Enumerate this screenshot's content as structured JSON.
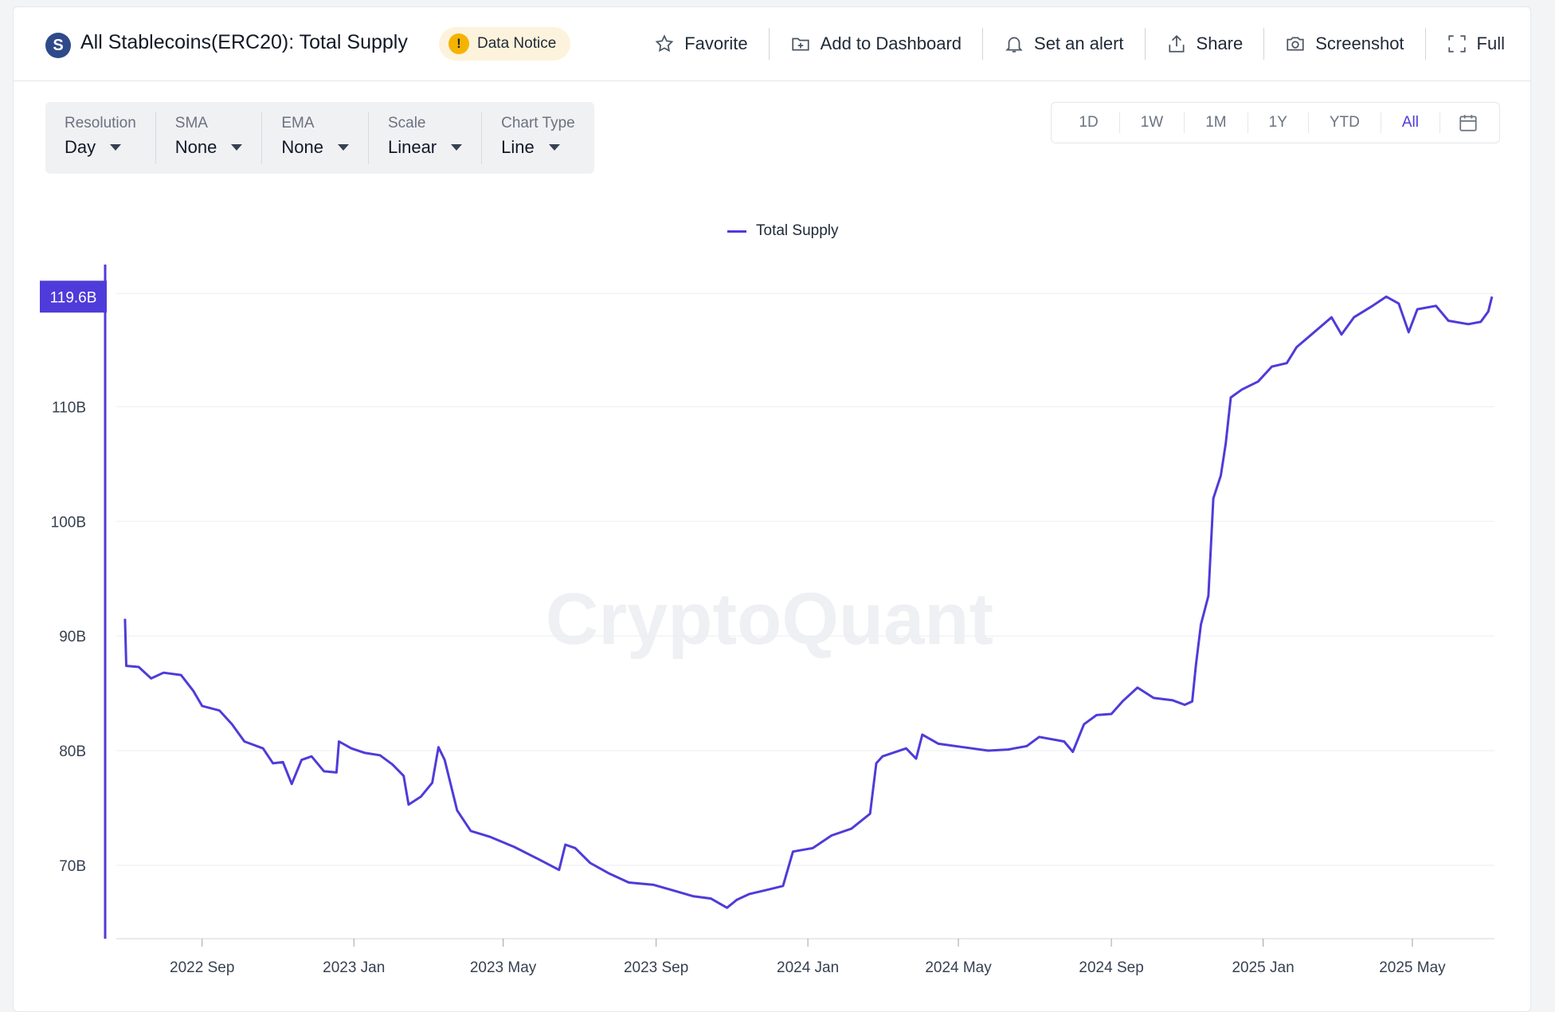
{
  "header": {
    "brand_icon": "S",
    "title": "All Stablecoins(ERC20): Total Supply",
    "notice_icon": "!",
    "notice_label": "Data Notice",
    "actions": [
      {
        "label": "Favorite",
        "icon": "star-icon"
      },
      {
        "label": "Add to Dashboard",
        "icon": "dashboard-add-icon"
      },
      {
        "label": "Set an alert",
        "icon": "bell-icon"
      },
      {
        "label": "Share",
        "icon": "share-icon"
      },
      {
        "label": "Screenshot",
        "icon": "camera-icon"
      },
      {
        "label": "Full",
        "icon": "fullscreen-icon"
      }
    ]
  },
  "selectors": [
    {
      "label": "Resolution",
      "value": "Day"
    },
    {
      "label": "SMA",
      "value": "None"
    },
    {
      "label": "EMA",
      "value": "None"
    },
    {
      "label": "Scale",
      "value": "Linear"
    },
    {
      "label": "Chart Type",
      "value": "Line"
    }
  ],
  "ranges": {
    "items": [
      "1D",
      "1W",
      "1M",
      "1Y",
      "YTD",
      "All"
    ],
    "active": "All",
    "calendar_icon": "calendar-icon"
  },
  "colors": {
    "accent": "#4f3bd9",
    "brand": "#2f4a8a",
    "notice": "#f5b301"
  },
  "chart_data": {
    "type": "line",
    "watermark": "CryptoQuant",
    "legend": "top-center",
    "grid": true,
    "series": [
      {
        "name": "Total Supply",
        "color": "#4f3bd9",
        "points": [
          [
            "2022-07-01",
            91.5
          ],
          [
            "2022-07-02",
            87.4
          ],
          [
            "2022-07-12",
            87.3
          ],
          [
            "2022-07-22",
            86.3
          ],
          [
            "2022-08-01",
            86.8
          ],
          [
            "2022-08-15",
            86.6
          ],
          [
            "2022-08-25",
            85.2
          ],
          [
            "2022-09-01",
            83.9
          ],
          [
            "2022-09-15",
            83.5
          ],
          [
            "2022-09-25",
            82.3
          ],
          [
            "2022-10-05",
            80.8
          ],
          [
            "2022-10-20",
            80.2
          ],
          [
            "2022-10-28",
            78.9
          ],
          [
            "2022-11-05",
            79.0
          ],
          [
            "2022-11-12",
            77.1
          ],
          [
            "2022-11-20",
            79.2
          ],
          [
            "2022-11-28",
            79.5
          ],
          [
            "2022-12-08",
            78.2
          ],
          [
            "2022-12-18",
            78.1
          ],
          [
            "2022-12-20",
            80.8
          ],
          [
            "2022-12-30",
            80.2
          ],
          [
            "2023-01-10",
            79.8
          ],
          [
            "2023-01-22",
            79.6
          ],
          [
            "2023-02-01",
            78.8
          ],
          [
            "2023-02-10",
            77.8
          ],
          [
            "2023-02-14",
            75.3
          ],
          [
            "2023-02-24",
            76.0
          ],
          [
            "2023-03-05",
            77.2
          ],
          [
            "2023-03-10",
            80.3
          ],
          [
            "2023-03-15",
            79.2
          ],
          [
            "2023-03-25",
            74.8
          ],
          [
            "2023-04-05",
            73.0
          ],
          [
            "2023-04-20",
            72.5
          ],
          [
            "2023-05-10",
            71.6
          ],
          [
            "2023-05-30",
            70.5
          ],
          [
            "2023-06-15",
            69.6
          ],
          [
            "2023-06-20",
            71.8
          ],
          [
            "2023-06-28",
            71.5
          ],
          [
            "2023-07-10",
            70.2
          ],
          [
            "2023-07-25",
            69.3
          ],
          [
            "2023-08-10",
            68.5
          ],
          [
            "2023-08-30",
            68.3
          ],
          [
            "2023-09-15",
            67.8
          ],
          [
            "2023-10-01",
            67.3
          ],
          [
            "2023-10-15",
            67.1
          ],
          [
            "2023-10-28",
            66.3
          ],
          [
            "2023-11-05",
            67.0
          ],
          [
            "2023-11-15",
            67.5
          ],
          [
            "2023-12-01",
            67.9
          ],
          [
            "2023-12-12",
            68.2
          ],
          [
            "2023-12-20",
            71.2
          ],
          [
            "2024-01-05",
            71.5
          ],
          [
            "2024-01-20",
            72.6
          ],
          [
            "2024-02-05",
            73.2
          ],
          [
            "2024-02-20",
            74.5
          ],
          [
            "2024-02-25",
            78.9
          ],
          [
            "2024-03-01",
            79.5
          ],
          [
            "2024-03-20",
            80.2
          ],
          [
            "2024-03-28",
            79.3
          ],
          [
            "2024-04-02",
            81.4
          ],
          [
            "2024-04-15",
            80.6
          ],
          [
            "2024-05-05",
            80.3
          ],
          [
            "2024-05-25",
            80.0
          ],
          [
            "2024-06-10",
            80.1
          ],
          [
            "2024-06-25",
            80.4
          ],
          [
            "2024-07-05",
            81.2
          ],
          [
            "2024-07-25",
            80.8
          ],
          [
            "2024-08-01",
            79.9
          ],
          [
            "2024-08-10",
            82.3
          ],
          [
            "2024-08-20",
            83.1
          ],
          [
            "2024-09-01",
            83.2
          ],
          [
            "2024-09-10",
            84.3
          ],
          [
            "2024-09-22",
            85.5
          ],
          [
            "2024-10-05",
            84.6
          ],
          [
            "2024-10-20",
            84.4
          ],
          [
            "2024-10-30",
            84.0
          ],
          [
            "2024-11-05",
            84.3
          ],
          [
            "2024-11-08",
            87.5
          ],
          [
            "2024-11-12",
            91.0
          ],
          [
            "2024-11-18",
            93.5
          ],
          [
            "2024-11-22",
            102.0
          ],
          [
            "2024-11-28",
            104.0
          ],
          [
            "2024-12-02",
            106.8
          ],
          [
            "2024-12-06",
            110.8
          ],
          [
            "2024-12-15",
            111.5
          ],
          [
            "2024-12-28",
            112.2
          ],
          [
            "2025-01-08",
            113.5
          ],
          [
            "2025-01-20",
            113.8
          ],
          [
            "2025-01-28",
            115.2
          ],
          [
            "2025-02-10",
            116.4
          ],
          [
            "2025-02-25",
            117.8
          ],
          [
            "2025-03-05",
            116.3
          ],
          [
            "2025-03-15",
            117.8
          ],
          [
            "2025-03-30",
            118.8
          ],
          [
            "2025-04-10",
            119.6
          ],
          [
            "2025-04-20",
            119.0
          ],
          [
            "2025-04-28",
            116.5
          ],
          [
            "2025-05-05",
            118.5
          ],
          [
            "2025-05-20",
            118.8
          ],
          [
            "2025-05-30",
            117.5
          ],
          [
            "2025-06-15",
            117.2
          ],
          [
            "2025-06-25",
            117.4
          ],
          [
            "2025-07-01",
            118.3
          ],
          [
            "2025-07-04",
            119.6
          ]
        ]
      }
    ],
    "x_ticks": [
      {
        "date": "2022-09-01",
        "label": "2022 Sep"
      },
      {
        "date": "2023-01-01",
        "label": "2023 Jan"
      },
      {
        "date": "2023-05-01",
        "label": "2023 May"
      },
      {
        "date": "2023-09-01",
        "label": "2023 Sep"
      },
      {
        "date": "2024-01-01",
        "label": "2024 Jan"
      },
      {
        "date": "2024-05-01",
        "label": "2024 May"
      },
      {
        "date": "2024-09-01",
        "label": "2024 Sep"
      },
      {
        "date": "2025-01-01",
        "label": "2025 Jan"
      },
      {
        "date": "2025-05-01",
        "label": "2025 May"
      }
    ],
    "y_ticks": [
      {
        "value": 70,
        "label": "70B"
      },
      {
        "value": 80,
        "label": "80B"
      },
      {
        "value": 90,
        "label": "90B"
      },
      {
        "value": 100,
        "label": "100B"
      },
      {
        "value": 110,
        "label": "110B"
      }
    ],
    "last_value": {
      "value": 119.6,
      "label": "119.6B"
    },
    "xlim": [
      "2022-06-24",
      "2025-07-06"
    ],
    "ylim": [
      63.6,
      122.4
    ]
  }
}
